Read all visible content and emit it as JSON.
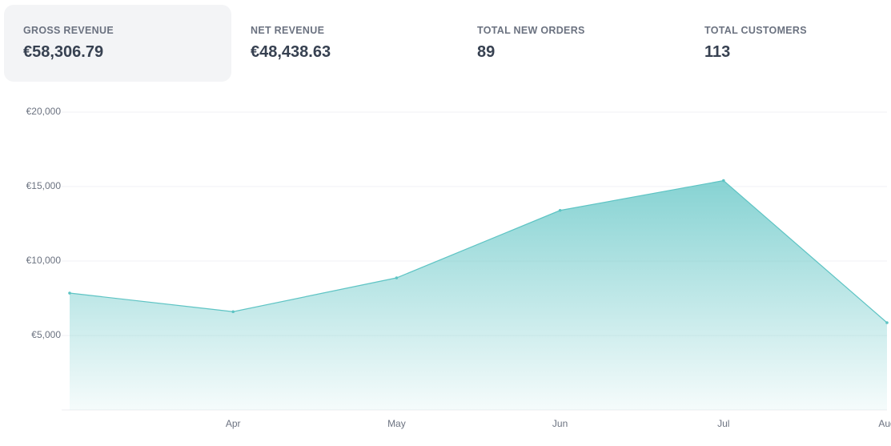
{
  "stats": [
    {
      "label": "GROSS REVENUE",
      "value": "€58,306.79"
    },
    {
      "label": "NET REVENUE",
      "value": "€48,438.63"
    },
    {
      "label": "TOTAL NEW ORDERS",
      "value": "89"
    },
    {
      "label": "TOTAL CUSTOMERS",
      "value": "113"
    }
  ],
  "chart_data": {
    "type": "area",
    "categories": [
      null,
      "Apr",
      "May",
      "Jun",
      "Jul",
      "Aug"
    ],
    "values": [
      7850,
      6600,
      8870,
      13400,
      15400,
      5860
    ],
    "color": "#5ec4c4",
    "ylim": [
      0,
      20000
    ],
    "yticks": [
      {
        "value": 5000,
        "label": "€5,000"
      },
      {
        "value": 10000,
        "label": "€10,000"
      },
      {
        "value": 15000,
        "label": "€15,000"
      },
      {
        "value": 20000,
        "label": "€20,000"
      }
    ],
    "grid": true
  }
}
